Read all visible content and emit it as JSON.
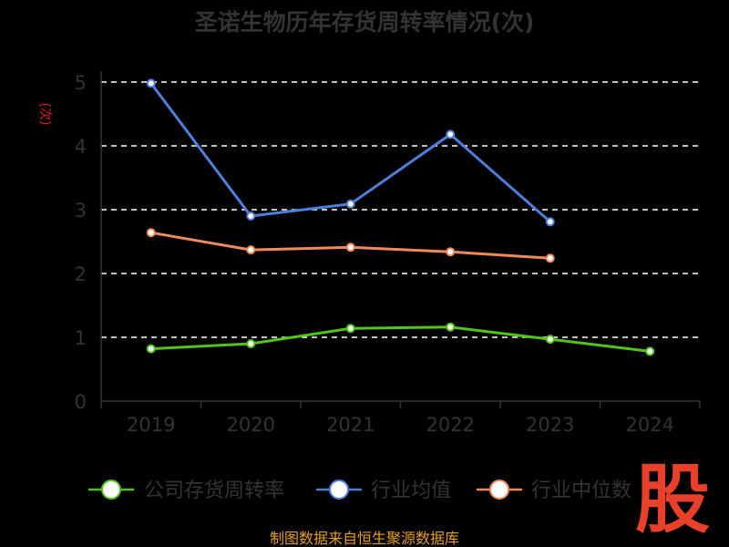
{
  "chart_data": {
    "type": "line",
    "title": "圣诺生物历年存货周转率情况(次)",
    "ylabel": "(次)",
    "xlabel": "",
    "categories": [
      "2019",
      "2020",
      "2021",
      "2022",
      "2023",
      "2024"
    ],
    "ylim": [
      0,
      5
    ],
    "yticks": [
      "0",
      "1",
      "2",
      "3",
      "4",
      "5"
    ],
    "grid": true,
    "legend_position": "bottom",
    "series": [
      {
        "name": "公司存货周转率",
        "color": "#52c41a",
        "values": [
          0.82,
          0.9,
          1.14,
          1.16,
          0.97,
          0.78
        ]
      },
      {
        "name": "行业均值",
        "color": "#4e7fdb",
        "values": [
          4.98,
          2.9,
          3.09,
          4.18,
          2.81,
          null
        ]
      },
      {
        "name": "行业中位数",
        "color": "#f08a5d",
        "values": [
          2.64,
          2.37,
          2.41,
          2.34,
          2.24,
          null
        ]
      }
    ]
  },
  "source_text": "制图数据来自恒生聚源数据库",
  "watermark_text": "股"
}
